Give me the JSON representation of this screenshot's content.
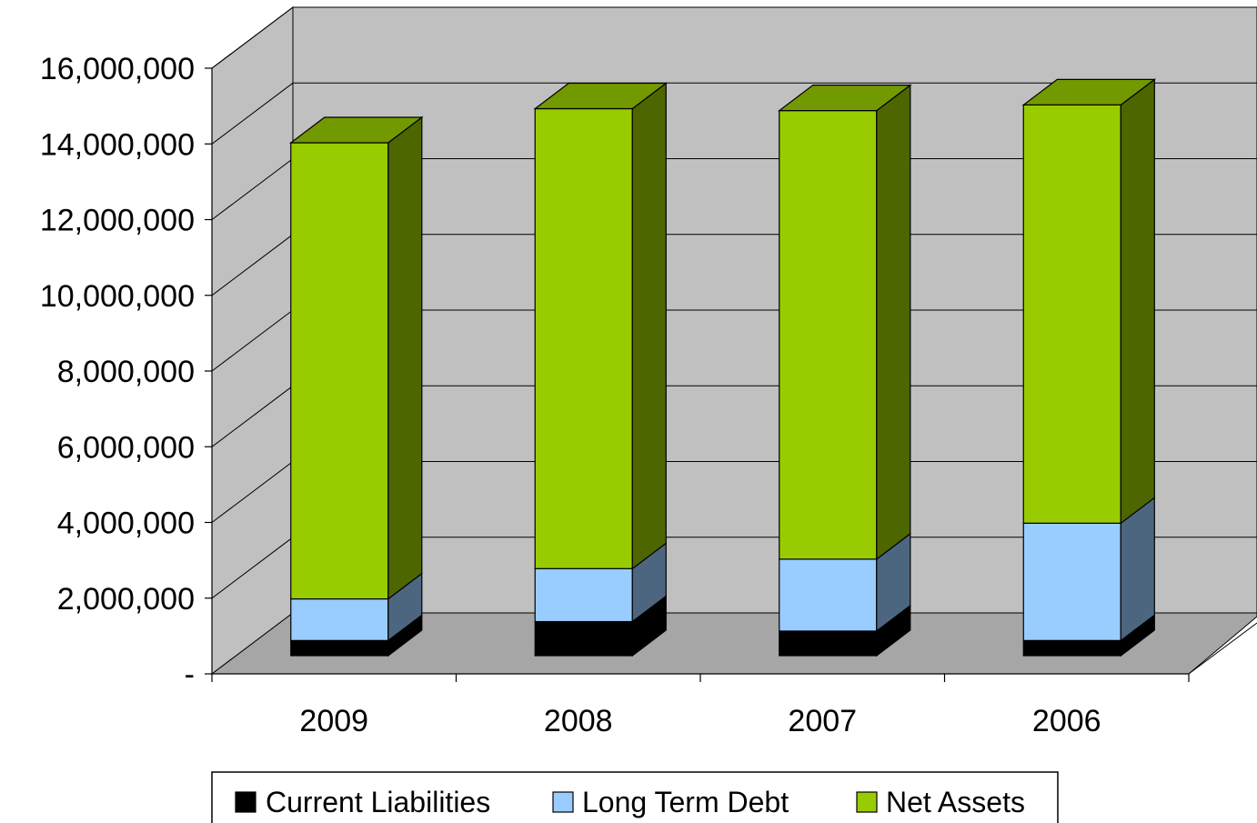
{
  "chart_data": {
    "type": "bar",
    "stacked": true,
    "style": "3d",
    "categories": [
      "2009",
      "2008",
      "2007",
      "2006"
    ],
    "series": [
      {
        "name": "Current Liabilities",
        "values": [
          400000,
          900000,
          650000,
          400000
        ],
        "color": "#000000"
      },
      {
        "name": "Long Term Debt",
        "values": [
          1100000,
          1400000,
          1900000,
          3100000
        ],
        "color": "#99ccff"
      },
      {
        "name": "Net Assets",
        "values": [
          12050000,
          12150000,
          11850000,
          11050000
        ],
        "color": "#99cc00"
      }
    ],
    "y_tick_labels": [
      "-",
      "2,000,000",
      "4,000,000",
      "6,000,000",
      "8,000,000",
      "10,000,000",
      "12,000,000",
      "14,000,000",
      "16,000,000"
    ],
    "ylim": [
      0,
      16000000
    ],
    "ystep": 2000000,
    "grid": true,
    "legend": "bottom",
    "colors": {
      "wall": "#c0c0c0",
      "floor": "#a6a6a6",
      "gridline": "#000000"
    }
  }
}
